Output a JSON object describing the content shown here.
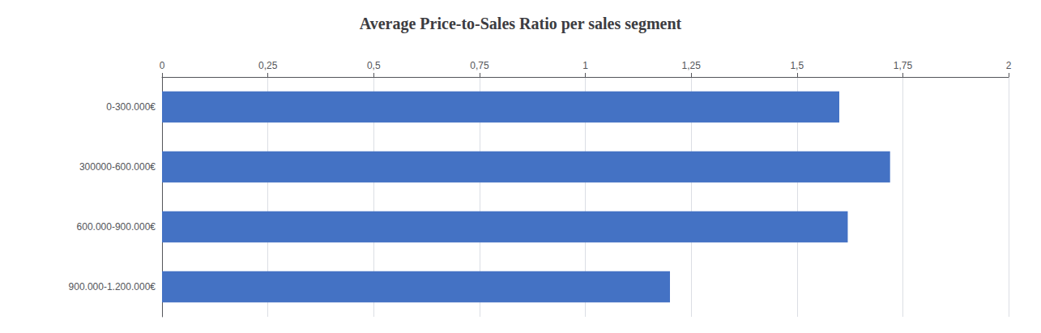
{
  "chart_data": {
    "type": "bar",
    "orientation": "horizontal",
    "title": "Average Price-to-Sales Ratio per sales segment",
    "categories": [
      "0-300.000€",
      "300000-600.000€",
      "600.000-900.000€",
      "900.000-1.200.000€"
    ],
    "values": [
      1.6,
      1.72,
      1.62,
      1.2
    ],
    "color": "#4472C4",
    "xlim": [
      0,
      2.0
    ],
    "xticks": [
      0,
      {
        "value": 0.25,
        "label": "0,25"
      },
      {
        "value": 0.5,
        "label": "0,5"
      },
      {
        "value": 0.75,
        "label": "0,75"
      },
      1,
      {
        "value": 1.25,
        "label": "1,25"
      },
      {
        "value": 1.5,
        "label": "1,5"
      },
      {
        "value": 1.75,
        "label": "1,75"
      },
      2
    ],
    "grid": true
  }
}
